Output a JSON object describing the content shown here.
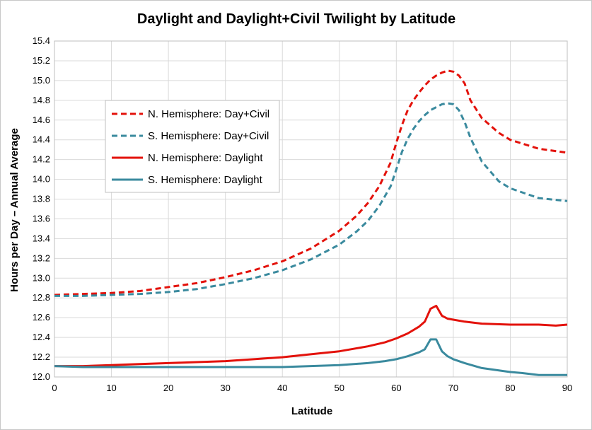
{
  "chart_data": {
    "type": "line",
    "title": "Daylight and Daylight+Civil Twilight by Latitude",
    "xlabel": "Latitude",
    "ylabel": "Hours per Day – Annual Average",
    "xlim": [
      0,
      90
    ],
    "ylim": [
      12.0,
      15.4
    ],
    "x_ticks": [
      "0",
      "10",
      "20",
      "30",
      "40",
      "50",
      "60",
      "70",
      "80",
      "90"
    ],
    "y_ticks": [
      "12.0",
      "12.2",
      "12.4",
      "12.6",
      "12.8",
      "13.0",
      "13.2",
      "13.4",
      "13.6",
      "13.8",
      "14.0",
      "14.2",
      "14.4",
      "14.6",
      "14.8",
      "15.0",
      "15.2",
      "15.4"
    ],
    "grid": true,
    "legend_position": "upper-left",
    "colors": {
      "north": "#e3120b",
      "south": "#3a8a9e",
      "grid": "#d9d9d9"
    },
    "series": [
      {
        "name": "N. Hemisphere: Day+Civil",
        "style": "dashed",
        "color": "#e3120b",
        "x": [
          0,
          5,
          10,
          15,
          20,
          25,
          30,
          35,
          40,
          45,
          50,
          53,
          55,
          57,
          59,
          60,
          61,
          62,
          63,
          64,
          65,
          66,
          67,
          68,
          69,
          70,
          71,
          72,
          73,
          75,
          78,
          80,
          85,
          90
        ],
        "y": [
          12.83,
          12.84,
          12.85,
          12.87,
          12.91,
          12.95,
          13.01,
          13.08,
          13.17,
          13.3,
          13.48,
          13.63,
          13.76,
          13.93,
          14.17,
          14.37,
          14.55,
          14.7,
          14.8,
          14.88,
          14.95,
          15.01,
          15.05,
          15.08,
          15.1,
          15.09,
          15.05,
          14.97,
          14.8,
          14.62,
          14.47,
          14.4,
          14.31,
          14.27
        ]
      },
      {
        "name": "S. Hemisphere: Day+Civil",
        "style": "dashed",
        "color": "#3a8a9e",
        "x": [
          0,
          5,
          10,
          15,
          20,
          25,
          30,
          35,
          40,
          45,
          50,
          53,
          55,
          57,
          59,
          60,
          61,
          62,
          63,
          64,
          65,
          66,
          67,
          68,
          69,
          70,
          71,
          72,
          73,
          75,
          78,
          80,
          85,
          90
        ],
        "y": [
          12.82,
          12.82,
          12.83,
          12.84,
          12.86,
          12.89,
          12.94,
          13.0,
          13.08,
          13.19,
          13.34,
          13.47,
          13.58,
          13.73,
          13.93,
          14.1,
          14.28,
          14.41,
          14.51,
          14.59,
          14.65,
          14.7,
          14.73,
          14.76,
          14.77,
          14.76,
          14.7,
          14.58,
          14.42,
          14.18,
          13.98,
          13.91,
          13.81,
          13.78
        ]
      },
      {
        "name": "N. Hemisphere: Daylight",
        "style": "solid",
        "color": "#e3120b",
        "x": [
          0,
          5,
          10,
          15,
          20,
          25,
          30,
          35,
          40,
          45,
          50,
          55,
          58,
          60,
          62,
          64,
          65,
          66,
          67,
          68,
          69,
          70,
          72,
          75,
          80,
          82,
          85,
          88,
          90
        ],
        "y": [
          12.11,
          12.11,
          12.12,
          12.13,
          12.14,
          12.15,
          12.16,
          12.18,
          12.2,
          12.23,
          12.26,
          12.31,
          12.35,
          12.39,
          12.44,
          12.51,
          12.56,
          12.69,
          12.72,
          12.62,
          12.59,
          12.58,
          12.56,
          12.54,
          12.53,
          12.53,
          12.53,
          12.52,
          12.53
        ]
      },
      {
        "name": "S. Hemisphere: Daylight",
        "style": "solid",
        "color": "#3a8a9e",
        "x": [
          0,
          5,
          10,
          15,
          20,
          25,
          30,
          35,
          40,
          45,
          50,
          55,
          58,
          60,
          62,
          64,
          65,
          66,
          67,
          68,
          69,
          70,
          72,
          75,
          80,
          82,
          85,
          88,
          90
        ],
        "y": [
          12.11,
          12.1,
          12.1,
          12.1,
          12.1,
          12.1,
          12.1,
          12.1,
          12.1,
          12.11,
          12.12,
          12.14,
          12.16,
          12.18,
          12.21,
          12.25,
          12.28,
          12.38,
          12.38,
          12.26,
          12.21,
          12.18,
          12.14,
          12.09,
          12.05,
          12.04,
          12.02,
          12.02,
          12.02
        ]
      }
    ]
  }
}
